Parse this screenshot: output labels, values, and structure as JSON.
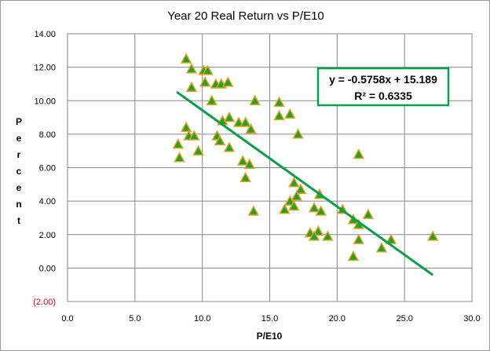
{
  "chart_data": {
    "type": "scatter",
    "title": "Year 20 Real Return vs P/E10",
    "xlabel": "P/E10",
    "ylabel": "Percent",
    "xlim": [
      0,
      30
    ],
    "ylim": [
      -2,
      14
    ],
    "x_ticks": [
      "0.0",
      "5.0",
      "10.0",
      "15.0",
      "20.0",
      "25.0",
      "30.0"
    ],
    "y_ticks": [
      "(2.00)",
      "0.00",
      "2.00",
      "4.00",
      "6.00",
      "8.00",
      "10.00",
      "12.00",
      "14.00"
    ],
    "grid": true,
    "marker_color": "#22a22a",
    "marker_edge_color": "#e6a01e",
    "trendline_color": "#0aa04a",
    "negative_tick_color": "#e00000",
    "trendline": {
      "slope": -0.5758,
      "intercept": 15.189,
      "x_range": [
        8.1,
        27.1
      ],
      "equation_label": "y = -0.5758x + 15.189",
      "r2_label": "R² = 0.6335"
    },
    "points": [
      [
        8.8,
        12.5
      ],
      [
        9.2,
        11.9
      ],
      [
        10.1,
        11.8
      ],
      [
        10.4,
        11.8
      ],
      [
        9.2,
        10.8
      ],
      [
        10.2,
        11.1
      ],
      [
        11.0,
        11.0
      ],
      [
        11.4,
        11.0
      ],
      [
        11.9,
        11.1
      ],
      [
        10.7,
        10.0
      ],
      [
        11.5,
        8.8
      ],
      [
        12.0,
        9.0
      ],
      [
        12.7,
        8.7
      ],
      [
        13.2,
        8.7
      ],
      [
        13.6,
        8.3
      ],
      [
        13.9,
        10.0
      ],
      [
        15.7,
        9.9
      ],
      [
        15.7,
        9.1
      ],
      [
        16.5,
        9.2
      ],
      [
        17.1,
        8.0
      ],
      [
        8.8,
        8.4
      ],
      [
        9.0,
        7.9
      ],
      [
        9.4,
        7.9
      ],
      [
        8.2,
        7.4
      ],
      [
        8.3,
        6.6
      ],
      [
        9.7,
        7.0
      ],
      [
        11.1,
        7.9
      ],
      [
        11.3,
        7.6
      ],
      [
        12.0,
        7.2
      ],
      [
        13.0,
        6.4
      ],
      [
        13.5,
        6.2
      ],
      [
        13.2,
        5.4
      ],
      [
        16.8,
        5.1
      ],
      [
        17.3,
        4.7
      ],
      [
        17.0,
        4.3
      ],
      [
        16.5,
        4.0
      ],
      [
        16.8,
        3.7
      ],
      [
        13.8,
        3.4
      ],
      [
        16.1,
        3.5
      ],
      [
        18.7,
        4.4
      ],
      [
        18.3,
        3.6
      ],
      [
        18.8,
        3.4
      ],
      [
        20.4,
        3.5
      ],
      [
        21.2,
        2.9
      ],
      [
        21.6,
        2.6
      ],
      [
        22.3,
        3.2
      ],
      [
        21.6,
        6.8
      ],
      [
        18.0,
        2.1
      ],
      [
        18.6,
        2.2
      ],
      [
        18.3,
        1.9
      ],
      [
        19.3,
        1.9
      ],
      [
        21.6,
        1.7
      ],
      [
        24.0,
        1.7
      ],
      [
        23.3,
        1.2
      ],
      [
        21.2,
        0.7
      ],
      [
        27.1,
        1.9
      ]
    ]
  }
}
